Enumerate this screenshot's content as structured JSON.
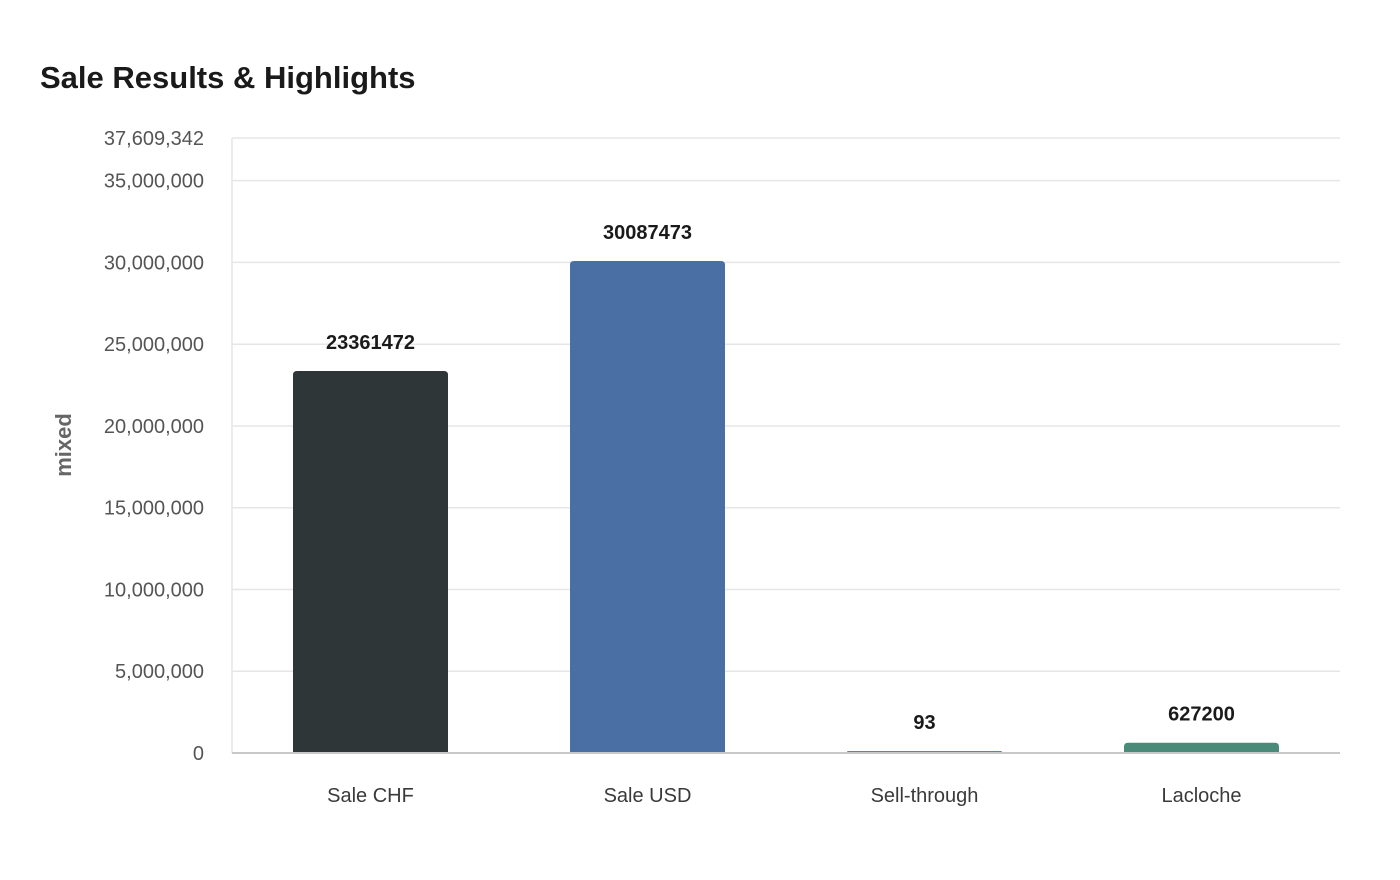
{
  "chart_data": {
    "type": "bar",
    "title": "Sale Results & Highlights",
    "xlabel": "",
    "ylabel": "mixed",
    "categories": [
      "Sale CHF",
      "Sale USD",
      "Sell-through",
      "Lacloche"
    ],
    "values": [
      23361472,
      30087473,
      93,
      627200
    ],
    "value_labels": [
      "23361472",
      "30087473",
      "93",
      "627200"
    ],
    "colors": [
      "#2e3638",
      "#4a6fa5",
      "#5b85b0",
      "#4a8a78"
    ],
    "ylim": [
      0,
      37609342
    ],
    "yticks": [
      0,
      5000000,
      10000000,
      15000000,
      20000000,
      25000000,
      30000000,
      35000000,
      37609342
    ],
    "ytick_labels": [
      "0",
      "5,000,000",
      "10,000,000",
      "15,000,000",
      "20,000,000",
      "25,000,000",
      "30,000,000",
      "35,000,000",
      "37,609,342"
    ],
    "grid": true,
    "legend": "none"
  }
}
